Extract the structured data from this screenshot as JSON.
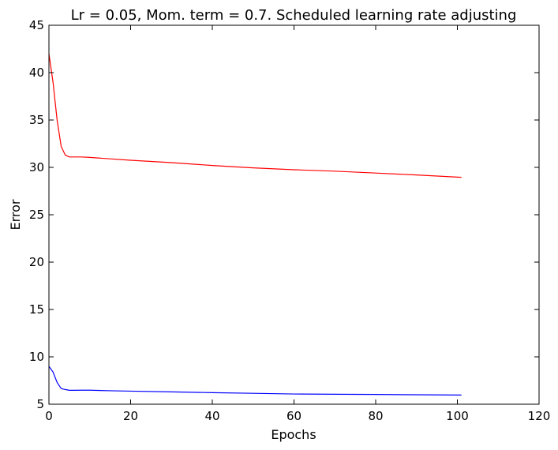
{
  "chart_data": {
    "type": "line",
    "title": "Lr = 0.05, Mom. term = 0.7. Scheduled learning rate adjusting",
    "xlabel": "Epochs",
    "ylabel": "Error",
    "xlim": [
      0,
      120
    ],
    "ylim": [
      5,
      45
    ],
    "xticks": [
      "0",
      "20",
      "40",
      "60",
      "80",
      "100",
      "120"
    ],
    "yticks": [
      "5",
      "10",
      "15",
      "20",
      "25",
      "30",
      "35",
      "40",
      "45"
    ],
    "grid": false,
    "legend": "none",
    "series": [
      {
        "color": "#ff0000",
        "x": [
          0,
          1,
          2,
          3,
          4,
          5,
          6,
          8,
          10,
          15,
          20,
          30,
          40,
          50,
          60,
          70,
          80,
          90,
          101
        ],
        "y": [
          42.0,
          39.0,
          35.0,
          32.2,
          31.3,
          31.1,
          31.1,
          31.1,
          31.05,
          30.9,
          30.75,
          30.5,
          30.2,
          29.95,
          29.75,
          29.6,
          29.4,
          29.2,
          28.95
        ]
      },
      {
        "color": "#0000ff",
        "x": [
          0,
          1,
          2,
          3,
          4,
          5,
          6,
          8,
          10,
          15,
          20,
          30,
          40,
          50,
          60,
          70,
          80,
          90,
          101
        ],
        "y": [
          9.0,
          8.4,
          7.3,
          6.65,
          6.55,
          6.47,
          6.47,
          6.48,
          6.48,
          6.42,
          6.38,
          6.3,
          6.22,
          6.15,
          6.08,
          6.05,
          6.03,
          6.0,
          5.97
        ]
      }
    ]
  }
}
